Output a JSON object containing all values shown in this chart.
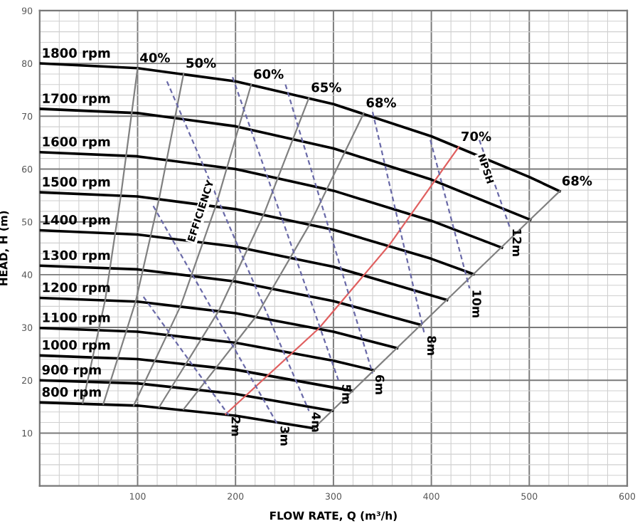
{
  "chart_data": {
    "type": "line",
    "xlabel": "FLOW RATE, Q (m³/h)",
    "ylabel": "HEAD, H (m)",
    "xlim": [
      0,
      600
    ],
    "ylim": [
      0,
      90
    ],
    "xticks": [
      100,
      200,
      300,
      400,
      500,
      600
    ],
    "yticks": [
      10,
      20,
      30,
      40,
      50,
      60,
      70,
      80,
      90
    ],
    "grid": true,
    "series": [
      {
        "name": "1800 rpm",
        "color": "#000000",
        "x": [
          0,
          100,
          200,
          300,
          400,
          500,
          531
        ],
        "values": [
          80,
          79.1,
          76.6,
          72.3,
          66.2,
          58.5,
          55.8
        ]
      },
      {
        "name": "1700 rpm",
        "color": "#000000",
        "x": [
          0,
          100,
          200,
          300,
          400,
          501
        ],
        "values": [
          71.4,
          70.6,
          68.1,
          63.9,
          58.0,
          50.4
        ]
      },
      {
        "name": "1600 rpm",
        "color": "#000000",
        "x": [
          0,
          100,
          200,
          300,
          400,
          472
        ],
        "values": [
          63.2,
          62.4,
          60.0,
          55.9,
          50.2,
          45.1
        ]
      },
      {
        "name": "1500 rpm",
        "color": "#000000",
        "x": [
          0,
          100,
          200,
          300,
          400,
          443
        ],
        "values": [
          55.6,
          54.8,
          52.4,
          48.5,
          43.0,
          40.1
        ]
      },
      {
        "name": "1400 rpm",
        "color": "#000000",
        "x": [
          0,
          100,
          200,
          300,
          416
        ],
        "values": [
          48.4,
          47.6,
          45.3,
          41.5,
          35.2
        ]
      },
      {
        "name": "1300 rpm",
        "color": "#000000",
        "x": [
          0,
          100,
          200,
          300,
          389
        ],
        "values": [
          41.7,
          41.0,
          38.7,
          35.0,
          30.5
        ]
      },
      {
        "name": "1200 rpm",
        "color": "#000000",
        "x": [
          0,
          100,
          200,
          300,
          365
        ],
        "values": [
          35.6,
          34.9,
          32.7,
          29.2,
          26.1
        ]
      },
      {
        "name": "1100 rpm",
        "color": "#000000",
        "x": [
          0,
          100,
          200,
          300,
          341
        ],
        "values": [
          29.9,
          29.2,
          27.1,
          23.7,
          21.9
        ]
      },
      {
        "name": "1000 rpm",
        "color": "#000000",
        "x": [
          0,
          100,
          200,
          319
        ],
        "values": [
          24.7,
          24.0,
          22.0,
          18.0
        ]
      },
      {
        "name": "900 rpm",
        "color": "#000000",
        "x": [
          0,
          100,
          200,
          299
        ],
        "values": [
          20.0,
          19.4,
          17.4,
          14.2
        ]
      },
      {
        "name": "800 rpm",
        "color": "#000000",
        "x": [
          0,
          100,
          200,
          280
        ],
        "values": [
          15.8,
          15.2,
          13.3,
          10.9
        ]
      },
      {
        "name": "40%",
        "color": "#808080",
        "x": [
          100,
          83,
          67,
          44
        ],
        "values": [
          79.1,
          55.1,
          35.3,
          15.7
        ]
      },
      {
        "name": "50%",
        "color": "#808080",
        "x": [
          147,
          122,
          98,
          65
        ],
        "values": [
          78.1,
          54.4,
          34.9,
          15.5
        ]
      },
      {
        "name": "60%",
        "color": "#808080",
        "x": [
          216,
          180,
          144,
          96
        ],
        "values": [
          76.0,
          53.1,
          34.1,
          15.2
        ]
      },
      {
        "name": "65%",
        "color": "#808080",
        "x": [
          275,
          229,
          183,
          122
        ],
        "values": [
          73.5,
          51.5,
          33.2,
          14.9
        ]
      },
      {
        "name": "68%",
        "color": "#808080",
        "x": [
          331,
          276,
          221,
          147
        ],
        "values": [
          70.6,
          49.6,
          32.1,
          14.5
        ]
      },
      {
        "name": "70%",
        "color": "#e06060",
        "x": [
          428,
          357,
          285,
          190
        ],
        "values": [
          64.2,
          45.6,
          29.8,
          13.6
        ]
      },
      {
        "name": "68%",
        "color": "#808080",
        "x": [
          531,
          405,
          280
        ],
        "values": [
          55.8,
          33.3,
          10.9
        ]
      },
      {
        "name": "2m",
        "color": "#6a6aa8",
        "line_style": "dashed",
        "x": [
          106,
          154,
          193
        ],
        "values": [
          35.8,
          23.4,
          13.4
        ]
      },
      {
        "name": "3m",
        "color": "#6a6aa8",
        "line_style": "dashed",
        "x": [
          116,
          243
        ],
        "values": [
          53,
          11.6
        ]
      },
      {
        "name": "4m",
        "color": "#6a6aa8",
        "line_style": "dashed",
        "x": [
          130,
          275
        ],
        "values": [
          76.6,
          14.2
        ]
      },
      {
        "name": "5m",
        "color": "#6a6aa8",
        "line_style": "dashed",
        "x": [
          197,
          306
        ],
        "values": [
          77.4,
          19.5
        ]
      },
      {
        "name": "6m",
        "color": "#6a6aa8",
        "line_style": "dashed",
        "x": [
          251,
          340
        ],
        "values": [
          76,
          21.3
        ]
      },
      {
        "name": "8m",
        "color": "#6a6aa8",
        "line_style": "dashed",
        "x": [
          340,
          393
        ],
        "values": [
          70.8,
          28.7
        ]
      },
      {
        "name": "10m",
        "color": "#6a6aa8",
        "line_style": "dashed",
        "x": [
          399,
          439
        ],
        "values": [
          65.5,
          37.4
        ]
      },
      {
        "name": "12m",
        "color": "#6a6aa8",
        "line_style": "dashed",
        "x": [
          449,
          480
        ],
        "values": [
          65.5,
          49
        ]
      }
    ],
    "annotations": [
      {
        "text": "EFFICIENCY",
        "x": 165,
        "y": 52
      },
      {
        "text": "NPSH",
        "x": 455,
        "y": 60
      }
    ]
  }
}
